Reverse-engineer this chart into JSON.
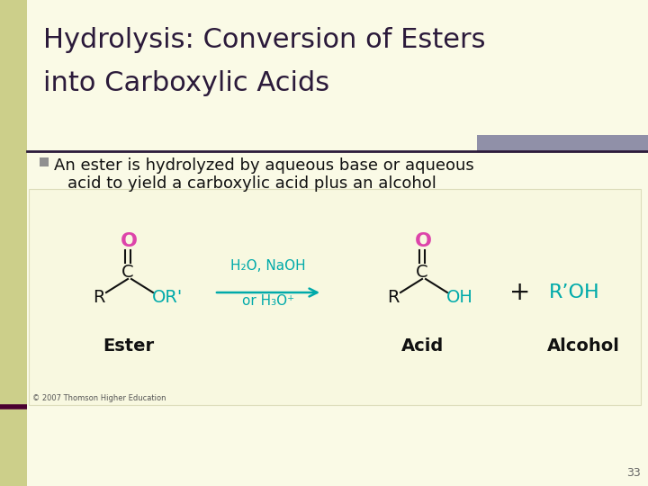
{
  "title_line1": "Hydrolysis: Conversion of Esters",
  "title_line2": "into Carboxylic Acids",
  "title_color": "#2b1a3a",
  "title_fontsize": 22,
  "bg_color": "#fafae6",
  "left_stripe_color": "#cccf8a",
  "top_bar_color": "#9090a8",
  "bullet_color": "#909090",
  "bullet_text_line1": "An ester is hydrolyzed by aqueous base or aqueous",
  "bullet_text_line2": "acid to yield a carboxylic acid plus an alcohol",
  "bullet_fontsize": 13,
  "bullet_text_color": "#111111",
  "reaction_box_color": "#f8f8e0",
  "reaction_box_edge": "#ddddbb",
  "ester_label": "Ester",
  "acid_label": "Acid",
  "alcohol_label": "Alcohol",
  "label_fontsize": 14,
  "label_color": "#111111",
  "pink_color": "#dd44aa",
  "teal_color": "#00aaaa",
  "dark_color": "#111111",
  "arrow_color": "#00aaaa",
  "reagent_color": "#00aaaa",
  "copyright_text": "© 2007 Thomson Higher Education",
  "copyright_fontsize": 6,
  "slide_number": "33",
  "slide_number_fontsize": 9,
  "divider_color": "#2b1a3a",
  "maroon_color": "#4a0030"
}
